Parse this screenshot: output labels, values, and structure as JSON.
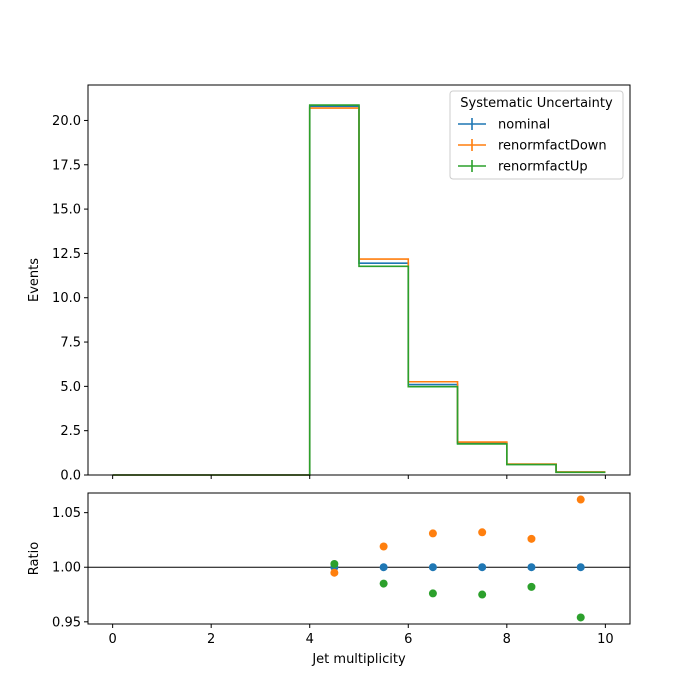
{
  "chart_data": [
    {
      "type": "line",
      "drawstyle": "step",
      "ylabel": "Events",
      "xlabel": "",
      "xlim": [
        -0.5,
        10.5
      ],
      "ylim": [
        0,
        22
      ],
      "bin_edges": [
        0,
        1,
        2,
        3,
        4,
        5,
        6,
        7,
        8,
        9,
        10
      ],
      "x_ticks": [
        0,
        2,
        4,
        6,
        8,
        10
      ],
      "x_ticklabels_visible": false,
      "y_ticks": [
        "0.0",
        "2.5",
        "5.0",
        "7.5",
        "10.0",
        "12.5",
        "15.0",
        "17.5",
        "20.0"
      ],
      "legend": {
        "title": "Systematic Uncertainty",
        "placement": "upper right"
      },
      "series": [
        {
          "name": "nominal",
          "color": "#1f77b4",
          "values": [
            0,
            0,
            0,
            0,
            20.8,
            11.95,
            5.1,
            1.8,
            0.6,
            0.16
          ]
        },
        {
          "name": "renormfactDown",
          "color": "#ff7f0e",
          "values": [
            0,
            0,
            0,
            0,
            20.7,
            12.18,
            5.26,
            1.86,
            0.62,
            0.17
          ]
        },
        {
          "name": "renormfactUp",
          "color": "#2ca02c",
          "values": [
            0,
            0,
            0,
            0,
            20.87,
            11.77,
            4.98,
            1.75,
            0.59,
            0.15
          ]
        }
      ]
    },
    {
      "type": "scatter",
      "ylabel": "Ratio",
      "xlabel": "Jet multiplicity",
      "xlim": [
        -0.5,
        10.5
      ],
      "ylim": [
        0.948,
        1.068
      ],
      "x_ticks": [
        "0",
        "2",
        "4",
        "6",
        "8",
        "10"
      ],
      "y_ticks": [
        "0.95",
        "1.00",
        "1.05"
      ],
      "reference_line": 1.0,
      "x": [
        4.5,
        5.5,
        6.5,
        7.5,
        8.5,
        9.5
      ],
      "series": [
        {
          "name": "nominal",
          "color": "#1f77b4",
          "values": [
            1.0,
            1.0,
            1.0,
            1.0,
            1.0,
            1.0
          ]
        },
        {
          "name": "renormfactDown",
          "color": "#ff7f0e",
          "values": [
            0.995,
            1.019,
            1.031,
            1.032,
            1.026,
            1.062
          ]
        },
        {
          "name": "renormfactUp",
          "color": "#2ca02c",
          "values": [
            1.003,
            0.985,
            0.976,
            0.975,
            0.982,
            0.954
          ]
        }
      ]
    }
  ]
}
